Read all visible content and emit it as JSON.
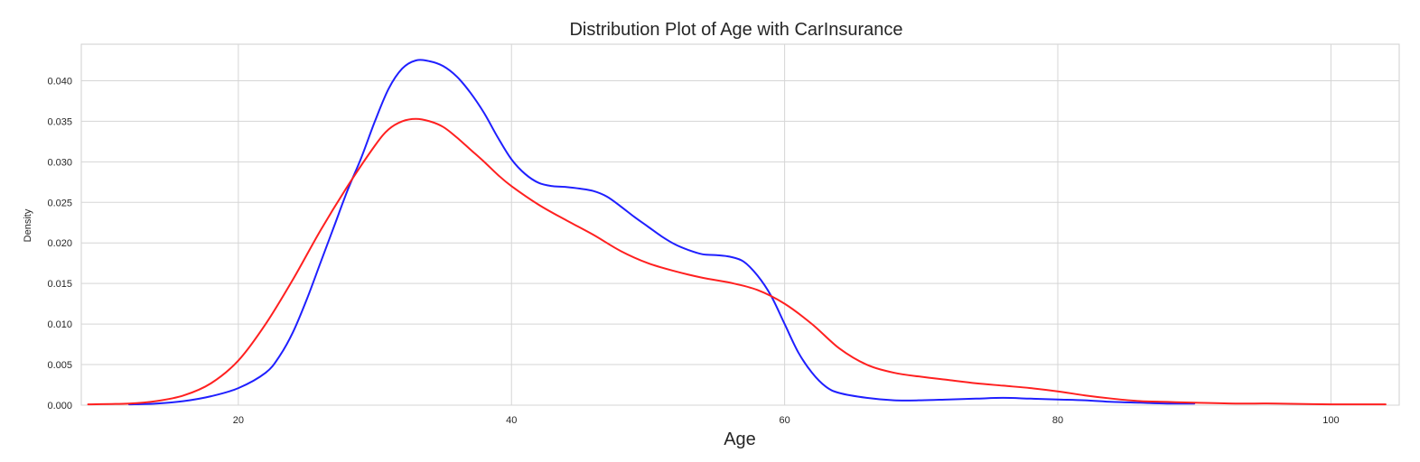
{
  "chart_data": {
    "type": "line",
    "title": "Distribution Plot of Age with CarInsurance",
    "xlabel": "Age",
    "ylabel": "Density",
    "xlim": [
      8.5,
      105
    ],
    "ylim": [
      0,
      0.0445
    ],
    "grid": true,
    "legend": "none",
    "x_ticks": [
      {
        "value": 20,
        "label": "20"
      },
      {
        "value": 40,
        "label": "40"
      },
      {
        "value": 60,
        "label": "60"
      },
      {
        "value": 80,
        "label": "80"
      },
      {
        "value": 100,
        "label": "100"
      }
    ],
    "y_ticks": [
      {
        "value": 0.0,
        "label": "0.000"
      },
      {
        "value": 0.005,
        "label": "0.005"
      },
      {
        "value": 0.01,
        "label": "0.010"
      },
      {
        "value": 0.015,
        "label": "0.015"
      },
      {
        "value": 0.02,
        "label": "0.020"
      },
      {
        "value": 0.025,
        "label": "0.025"
      },
      {
        "value": 0.03,
        "label": "0.030"
      },
      {
        "value": 0.035,
        "label": "0.035"
      },
      {
        "value": 0.04,
        "label": "0.040"
      }
    ],
    "series": [
      {
        "color": "#1f1fff",
        "points": [
          [
            12,
            0.0001
          ],
          [
            14,
            0.0002
          ],
          [
            16,
            0.0005
          ],
          [
            18,
            0.0011
          ],
          [
            20,
            0.0021
          ],
          [
            22,
            0.004
          ],
          [
            23,
            0.006
          ],
          [
            24,
            0.009
          ],
          [
            25,
            0.013
          ],
          [
            26,
            0.0175
          ],
          [
            27,
            0.022
          ],
          [
            28,
            0.0265
          ],
          [
            29,
            0.0305
          ],
          [
            30,
            0.035
          ],
          [
            31,
            0.039
          ],
          [
            32,
            0.0415
          ],
          [
            33,
            0.0425
          ],
          [
            34,
            0.0424
          ],
          [
            35,
            0.0418
          ],
          [
            36,
            0.0405
          ],
          [
            37,
            0.0385
          ],
          [
            38,
            0.036
          ],
          [
            39,
            0.033
          ],
          [
            40,
            0.0303
          ],
          [
            41,
            0.0285
          ],
          [
            42,
            0.0274
          ],
          [
            43,
            0.027
          ],
          [
            44,
            0.0269
          ],
          [
            45,
            0.0267
          ],
          [
            46,
            0.0264
          ],
          [
            47,
            0.0257
          ],
          [
            48,
            0.0245
          ],
          [
            49,
            0.0232
          ],
          [
            50,
            0.022
          ],
          [
            51,
            0.0208
          ],
          [
            52,
            0.0198
          ],
          [
            53,
            0.0191
          ],
          [
            54,
            0.0186
          ],
          [
            55,
            0.0185
          ],
          [
            56,
            0.0183
          ],
          [
            57,
            0.0177
          ],
          [
            58,
            0.016
          ],
          [
            59,
            0.0135
          ],
          [
            60,
            0.01
          ],
          [
            61,
            0.0065
          ],
          [
            62,
            0.004
          ],
          [
            63,
            0.0023
          ],
          [
            64,
            0.0015
          ],
          [
            66,
            0.0009
          ],
          [
            68,
            0.0006
          ],
          [
            70,
            0.0006
          ],
          [
            72,
            0.0007
          ],
          [
            74,
            0.0008
          ],
          [
            76,
            0.0009
          ],
          [
            78,
            0.0008
          ],
          [
            80,
            0.0007
          ],
          [
            82,
            0.0006
          ],
          [
            84,
            0.0004
          ],
          [
            86,
            0.0003
          ],
          [
            88,
            0.0002
          ],
          [
            90,
            0.0002
          ]
        ]
      },
      {
        "color": "#ff2020",
        "points": [
          [
            9,
            0.0001
          ],
          [
            12,
            0.0002
          ],
          [
            14,
            0.0005
          ],
          [
            16,
            0.0012
          ],
          [
            18,
            0.0027
          ],
          [
            20,
            0.0055
          ],
          [
            22,
            0.01
          ],
          [
            24,
            0.0155
          ],
          [
            26,
            0.0215
          ],
          [
            28,
            0.027
          ],
          [
            30,
            0.032
          ],
          [
            31,
            0.034
          ],
          [
            32,
            0.035
          ],
          [
            33,
            0.0353
          ],
          [
            34,
            0.035
          ],
          [
            35,
            0.0343
          ],
          [
            36,
            0.033
          ],
          [
            37,
            0.0315
          ],
          [
            38,
            0.03
          ],
          [
            39,
            0.0284
          ],
          [
            40,
            0.027
          ],
          [
            42,
            0.0247
          ],
          [
            44,
            0.0228
          ],
          [
            46,
            0.021
          ],
          [
            48,
            0.019
          ],
          [
            50,
            0.0175
          ],
          [
            52,
            0.0165
          ],
          [
            54,
            0.0157
          ],
          [
            56,
            0.0151
          ],
          [
            58,
            0.0142
          ],
          [
            60,
            0.0125
          ],
          [
            62,
            0.01
          ],
          [
            64,
            0.007
          ],
          [
            66,
            0.005
          ],
          [
            68,
            0.004
          ],
          [
            70,
            0.0035
          ],
          [
            72,
            0.0031
          ],
          [
            74,
            0.0027
          ],
          [
            76,
            0.0024
          ],
          [
            78,
            0.0021
          ],
          [
            80,
            0.0017
          ],
          [
            82,
            0.0012
          ],
          [
            84,
            0.0008
          ],
          [
            86,
            0.0005
          ],
          [
            88,
            0.0004
          ],
          [
            90,
            0.0003
          ],
          [
            93,
            0.0002
          ],
          [
            96,
            0.0002
          ],
          [
            100,
            0.0001
          ],
          [
            104,
            0.0001
          ]
        ]
      }
    ]
  }
}
